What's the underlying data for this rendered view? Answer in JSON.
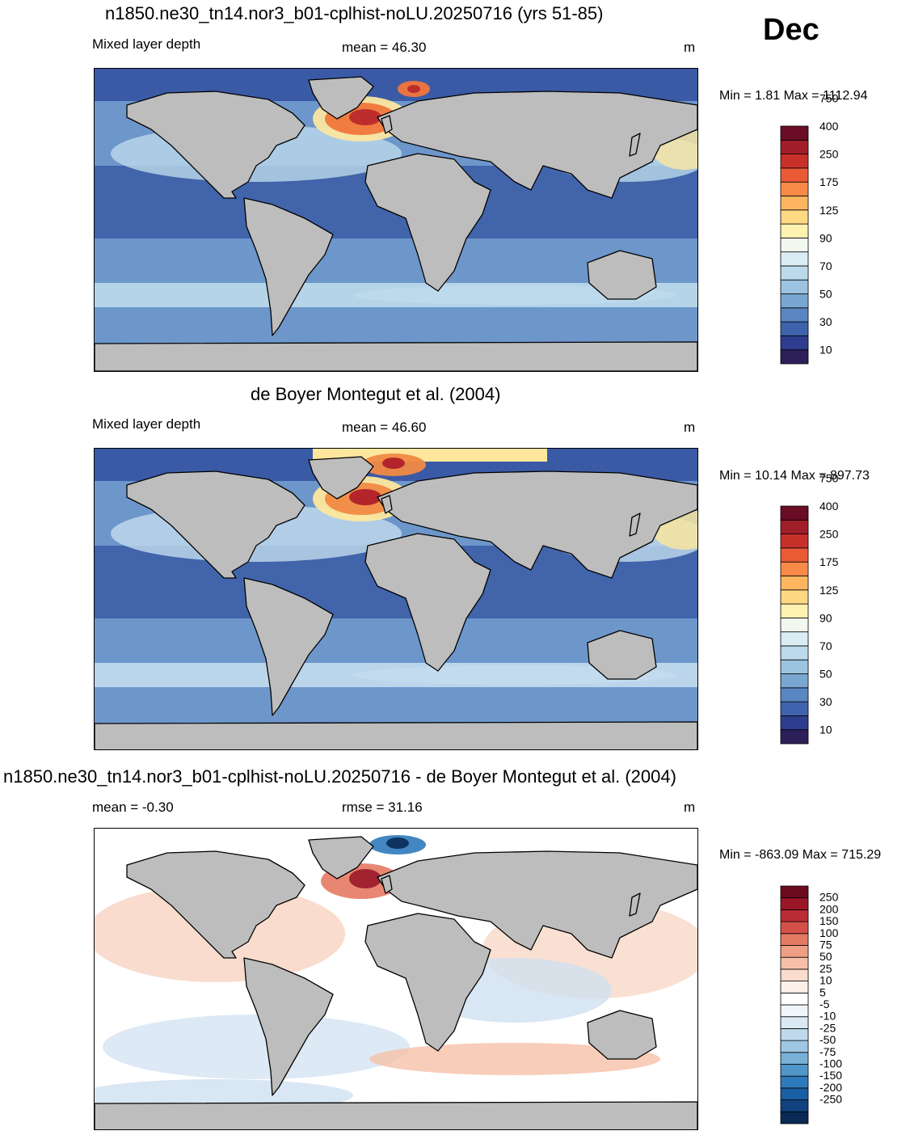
{
  "month": "Dec",
  "units": "m",
  "land_color": "#bdbdbd",
  "panels": [
    {
      "id": "model",
      "title": "n1850.ne30_tn14.nor3_b01-cplhist-noLU.20250716 (yrs 51-85)",
      "left_label": "Mixed layer depth",
      "center_label": "mean =  46.30",
      "right_label": "m",
      "minmax": "Min =   1.81 Max = 1112.94"
    },
    {
      "id": "obs",
      "title": "de Boyer Montegut et al. (2004)",
      "left_label": "Mixed layer depth",
      "center_label": "mean =  46.60",
      "right_label": "m",
      "minmax": "Min =  10.14 Max = 897.73"
    },
    {
      "id": "diff",
      "title": "n1850.ne30_tn14.nor3_b01-cplhist-noLU.20250716 - de Boyer Montegut et al. (2004)",
      "left_label": "mean =  -0.30",
      "center_label": "rmse =  31.16",
      "right_label": "m",
      "minmax": "Min = -863.09 Max = 715.29"
    }
  ],
  "colorbars": {
    "mld": {
      "colors": [
        "#2c1f5a",
        "#2f3d8f",
        "#3f63ad",
        "#5a86c2",
        "#7aa6d2",
        "#9cc3e0",
        "#bcdaeb",
        "#daecf4",
        "#f2f8f0",
        "#fdf2b0",
        "#fed882",
        "#fdb560",
        "#f88a48",
        "#ea5a35",
        "#c8302a",
        "#a01e29",
        "#6b0d24"
      ],
      "labels": [
        "10",
        "30",
        "50",
        "70",
        "90",
        "125",
        "175",
        "250",
        "400",
        "750"
      ]
    },
    "diff": {
      "colors": [
        "#0a2a55",
        "#11417f",
        "#1a5ea3",
        "#2f7abb",
        "#5096c9",
        "#78b0d8",
        "#9fc7e3",
        "#bfd9ec",
        "#dae9f4",
        "#f0f5fa",
        "#ffffff",
        "#fdf0e8",
        "#fbdccc",
        "#f6c0a8",
        "#ef9f83",
        "#e47a63",
        "#d4514a",
        "#bb2d35",
        "#9b1728",
        "#6e0a1e"
      ],
      "labels": [
        "250",
        "200",
        "150",
        "100",
        "75",
        "50",
        "25",
        "10",
        "5",
        "-5",
        "-10",
        "-25",
        "-50",
        "-75",
        "-100",
        "-150",
        "-200",
        "-250"
      ]
    }
  },
  "field_palettes": {
    "model": {
      "deep": "#3a5aa6",
      "mid": "#6d97cb",
      "light": "#bcdaeb",
      "warm": "#fbe6a0",
      "hot": "#f0763c",
      "vhot": "#b82a2a"
    },
    "obs": {
      "deep": "#3a5aa6",
      "mid": "#6d97cb",
      "light": "#c3dcee",
      "warm": "#fde79c",
      "hot": "#f08a45",
      "vhot": "#b0202a"
    },
    "diff": {
      "deep": "#1f5fa6",
      "mid": "#b8d3ea",
      "light": "#ffffff",
      "warm": "#f8cdb6",
      "hot": "#e06a58",
      "vhot": "#9a1728"
    }
  }
}
